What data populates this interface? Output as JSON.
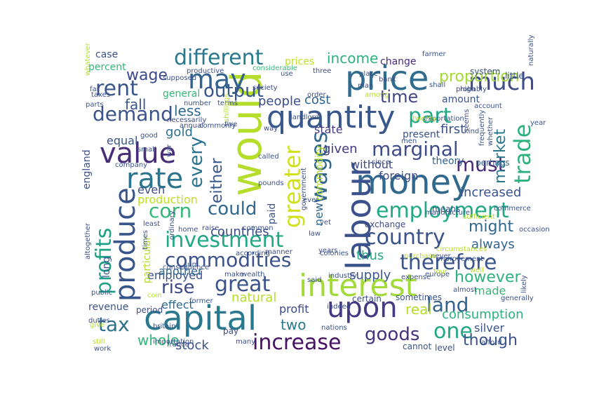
{
  "words": [
    {
      "text": "would",
      "color": "#b5dd2b"
    },
    {
      "text": "price",
      "color": "#2f6c8e"
    },
    {
      "text": "capital",
      "color": "#2a788e"
    },
    {
      "text": "money",
      "color": "#31688e"
    },
    {
      "text": "labour",
      "color": "#3b518b"
    },
    {
      "text": "quantity",
      "color": "#38578c"
    },
    {
      "text": "value",
      "color": "#472c7a"
    },
    {
      "text": "interest",
      "color": "#a2da37"
    },
    {
      "text": "rate",
      "color": "#2b748e"
    },
    {
      "text": "may",
      "color": "#33638d"
    },
    {
      "text": "produce",
      "color": "#39568c"
    },
    {
      "text": "upon",
      "color": "#443a83"
    },
    {
      "text": "employment",
      "color": "#22a884"
    },
    {
      "text": "greater",
      "color": "#d0e11c"
    },
    {
      "text": "country",
      "color": "#3b528b"
    },
    {
      "text": "therefore",
      "color": "#3a548c"
    },
    {
      "text": "much",
      "color": "#3e4c8a"
    },
    {
      "text": "trade",
      "color": "#2db27d"
    },
    {
      "text": "wages",
      "color": "#31688e"
    },
    {
      "text": "different",
      "color": "#2a788e"
    },
    {
      "text": "rent",
      "color": "#39568c"
    },
    {
      "text": "investment",
      "color": "#22a884"
    },
    {
      "text": "part",
      "color": "#22a884"
    },
    {
      "text": "increase",
      "color": "#471164"
    },
    {
      "text": "commodities",
      "color": "#3b528b"
    },
    {
      "text": "marginal",
      "color": "#3e4c8a"
    },
    {
      "text": "one",
      "color": "#22a884"
    },
    {
      "text": "demand",
      "color": "#3b528b"
    },
    {
      "text": "must",
      "color": "#472a7a"
    },
    {
      "text": "profits",
      "color": "#1fa187"
    },
    {
      "text": "great",
      "color": "#3b528b"
    },
    {
      "text": "goods",
      "color": "#46337e"
    },
    {
      "text": "corn",
      "color": "#35b779"
    },
    {
      "text": "tax",
      "color": "#2c728e"
    },
    {
      "text": "rise",
      "color": "#3e4989"
    },
    {
      "text": "land",
      "color": "#33638d"
    },
    {
      "text": "every",
      "color": "#2c728e"
    },
    {
      "text": "time",
      "color": "#414487"
    },
    {
      "text": "output",
      "color": "#39568c"
    },
    {
      "text": "could",
      "color": "#31688e"
    },
    {
      "text": "proportion",
      "color": "#a5db36"
    },
    {
      "text": "income",
      "color": "#2db27d"
    },
    {
      "text": "market",
      "color": "#2a788e"
    },
    {
      "text": "wage",
      "color": "#3e4989"
    },
    {
      "text": "fall",
      "color": "#38588c"
    },
    {
      "text": "though",
      "color": "#3b528b"
    },
    {
      "text": "however",
      "color": "#2db27d"
    },
    {
      "text": "whole",
      "color": "#35b779"
    },
    {
      "text": "stock",
      "color": "#3b528b"
    },
    {
      "text": "less",
      "color": "#31688e"
    },
    {
      "text": "people",
      "color": "#3e4c8a"
    },
    {
      "text": "thus",
      "color": "#22a884"
    },
    {
      "text": "given",
      "color": "#443a83"
    },
    {
      "text": "supply",
      "color": "#3a548c"
    },
    {
      "text": "might",
      "color": "#31688e"
    },
    {
      "text": "two",
      "color": "#2a788e"
    },
    {
      "text": "real",
      "color": "#b5dd2b"
    },
    {
      "text": "consumption",
      "color": "#2db27d"
    },
    {
      "text": "silver",
      "color": "#3b528b"
    },
    {
      "text": "state",
      "color": "#443a83"
    },
    {
      "text": "either",
      "color": "#38588c"
    },
    {
      "text": "gold",
      "color": "#2c728e"
    },
    {
      "text": "equal",
      "color": "#3a548c"
    },
    {
      "text": "cost",
      "color": "#33638d"
    },
    {
      "text": "countries",
      "color": "#3e4c8a"
    },
    {
      "text": "always",
      "color": "#33638d"
    },
    {
      "text": "increased",
      "color": "#3b528b"
    },
    {
      "text": "even",
      "color": "#3e4c8a"
    },
    {
      "text": "foreign",
      "color": "#3e4c8a"
    },
    {
      "text": "first",
      "color": "#3b528b"
    },
    {
      "text": "employed",
      "color": "#3b528b"
    },
    {
      "text": "made",
      "color": "#35b779"
    },
    {
      "text": "profit",
      "color": "#3e4989"
    },
    {
      "text": "effect",
      "color": "#31688e"
    },
    {
      "text": "natural",
      "color": "#b5dd2b"
    },
    {
      "text": "another",
      "color": "#31688e"
    },
    {
      "text": "revenue",
      "color": "#3b528b"
    },
    {
      "text": "without",
      "color": "#3e4c8a"
    },
    {
      "text": "theory",
      "color": "#33638d"
    },
    {
      "text": "present",
      "color": "#3b528b"
    },
    {
      "text": "general",
      "color": "#35b779"
    },
    {
      "text": "amount",
      "color": "#3b528b"
    },
    {
      "text": "prices",
      "color": "#c2df23"
    },
    {
      "text": "change",
      "color": "#472a7a"
    },
    {
      "text": "production",
      "color": "#bddf26"
    },
    {
      "text": "particular",
      "color": "#b5dd2b"
    },
    {
      "text": "long",
      "color": "#3b528b"
    },
    {
      "text": "england",
      "color": "#3b528b"
    },
    {
      "text": "case",
      "color": "#3b528b"
    },
    {
      "text": "percent",
      "color": "#35b779"
    },
    {
      "text": "commodity",
      "color": "#b5dd2b"
    },
    {
      "text": "perhaps",
      "color": "#31688e"
    },
    {
      "text": "exchange",
      "color": "#3e4c8a"
    },
    {
      "text": "level",
      "color": "#3b528b"
    },
    {
      "text": "cannot",
      "color": "#3b528b"
    },
    {
      "text": "sometimes",
      "color": "#3b528b"
    },
    {
      "text": "certain",
      "color": "#3e4c8a"
    },
    {
      "text": "pay",
      "color": "#3e4c8a"
    },
    {
      "text": "period",
      "color": "#3e4c8a"
    },
    {
      "text": "paid",
      "color": "#3b528b"
    },
    {
      "text": "new",
      "color": "#31688e"
    },
    {
      "text": "means",
      "color": "#3b528b"
    },
    {
      "text": "system",
      "color": "#3b528b"
    },
    {
      "text": "high",
      "color": "#3b528b"
    },
    {
      "text": "three",
      "color": "#3e4c8a"
    },
    {
      "text": "society",
      "color": "#3e4c8a"
    },
    {
      "text": "terms",
      "color": "#3b528b"
    },
    {
      "text": "number",
      "color": "#3b528b"
    },
    {
      "text": "taxes",
      "color": "#3e4c8a"
    },
    {
      "text": "far",
      "color": "#3b528b"
    },
    {
      "text": "bank",
      "color": "#3e4c8a"
    },
    {
      "text": "place",
      "color": "#3b528b"
    },
    {
      "text": "man",
      "color": "#3e4c8a"
    },
    {
      "text": "little",
      "color": "#3b528b"
    },
    {
      "text": "farmer",
      "color": "#3b528b"
    },
    {
      "text": "shall",
      "color": "#3b528b"
    },
    {
      "text": "home",
      "color": "#3b528b"
    },
    {
      "text": "raise",
      "color": "#3e4c8a"
    },
    {
      "text": "manner",
      "color": "#3e4c8a"
    },
    {
      "text": "make",
      "color": "#3b528b"
    },
    {
      "text": "wealth",
      "color": "#3b528b"
    },
    {
      "text": "industry",
      "color": "#3b528b"
    },
    {
      "text": "said",
      "color": "#3b528b"
    },
    {
      "text": "indeed",
      "color": "#3e4c8a"
    },
    {
      "text": "work",
      "color": "#3b528b"
    },
    {
      "text": "many",
      "color": "#3e4c8a"
    },
    {
      "text": "sum",
      "color": "#3b528b"
    },
    {
      "text": "public",
      "color": "#3b528b"
    },
    {
      "text": "still",
      "color": "#b5dd2b"
    },
    {
      "text": "duties",
      "color": "#3e4c8a"
    },
    {
      "text": "britain",
      "color": "#3b528b"
    },
    {
      "text": "years",
      "color": "#3b528b"
    },
    {
      "text": "yet",
      "color": "#3b528b"
    },
    {
      "text": "according",
      "color": "#3b528b"
    },
    {
      "text": "common",
      "color": "#3b528b"
    },
    {
      "text": "pounds",
      "color": "#3b528b"
    },
    {
      "text": "called",
      "color": "#3b528b"
    },
    {
      "text": "annual",
      "color": "#3e4c8a"
    },
    {
      "text": "small",
      "color": "#3b528b"
    },
    {
      "text": "good",
      "color": "#3b528b"
    },
    {
      "text": "five",
      "color": "#3b528b"
    },
    {
      "text": "necessarily",
      "color": "#3e4c8a"
    },
    {
      "text": "government",
      "color": "#3b528b"
    },
    {
      "text": "since",
      "color": "#3e4c8a"
    },
    {
      "text": "landlord",
      "color": "#3b528b"
    },
    {
      "text": "way",
      "color": "#3e4c8a"
    },
    {
      "text": "use",
      "color": "#3b528b"
    },
    {
      "text": "order",
      "color": "#3b528b"
    },
    {
      "text": "exportation",
      "color": "#3b528b"
    },
    {
      "text": "account",
      "color": "#3b528b"
    },
    {
      "text": "whether",
      "color": "#3b528b"
    },
    {
      "text": "frequently",
      "color": "#3b528b"
    },
    {
      "text": "manufacture",
      "color": "#3b528b"
    },
    {
      "text": "sufficient",
      "color": "#b5dd2b"
    },
    {
      "text": "well",
      "color": "#b5dd2b"
    },
    {
      "text": "almost",
      "color": "#3b528b"
    },
    {
      "text": "generally",
      "color": "#3b528b"
    },
    {
      "text": "expense",
      "color": "#3b528b"
    },
    {
      "text": "europe",
      "color": "#3b528b"
    },
    {
      "text": "never",
      "color": "#3b528b"
    },
    {
      "text": "purchase",
      "color": "#b5dd2b"
    },
    {
      "text": "colonies",
      "color": "#3b528b"
    },
    {
      "text": "times",
      "color": "#3b528b"
    },
    {
      "text": "ordinary",
      "color": "#3b528b"
    },
    {
      "text": "among",
      "color": "#b5dd2b"
    },
    {
      "text": "probably",
      "color": "#3e4c8a"
    },
    {
      "text": "seems",
      "color": "#3e4c8a"
    },
    {
      "text": "year",
      "color": "#3b528b"
    },
    {
      "text": "kind",
      "color": "#3b528b"
    },
    {
      "text": "afford",
      "color": "#3b528b"
    },
    {
      "text": "importation",
      "color": "#3b528b"
    },
    {
      "text": "france",
      "color": "#3b528b"
    },
    {
      "text": "nations",
      "color": "#3b528b"
    },
    {
      "text": "consequence",
      "color": "#3b528b"
    },
    {
      "text": "former",
      "color": "#3b528b"
    },
    {
      "text": "productive",
      "color": "#3b528b"
    },
    {
      "text": "considerable",
      "color": "#35b779"
    },
    {
      "text": "commonly",
      "color": "#3b528b"
    },
    {
      "text": "shillings",
      "color": "#b5dd2b"
    },
    {
      "text": "circumstances",
      "color": "#b5dd2b"
    },
    {
      "text": "improvement",
      "color": "#3b528b"
    },
    {
      "text": "commerce",
      "color": "#3b528b"
    },
    {
      "text": "occasion",
      "color": "#3b528b"
    },
    {
      "text": "likely",
      "color": "#3b528b"
    },
    {
      "text": "whatever",
      "color": "#b5dd2b"
    },
    {
      "text": "naturally",
      "color": "#3b528b"
    },
    {
      "text": "supposed",
      "color": "#3b528b"
    },
    {
      "text": "parts",
      "color": "#3b528b"
    },
    {
      "text": "war",
      "color": "#3b528b"
    },
    {
      "text": "least",
      "color": "#3b528b"
    },
    {
      "text": "altogether",
      "color": "#3b528b"
    },
    {
      "text": "company",
      "color": "#3b528b"
    },
    {
      "text": "give",
      "color": "#b5dd2b"
    },
    {
      "text": "coin",
      "color": "#b5dd2b"
    },
    {
      "text": "law",
      "color": "#3b528b"
    },
    {
      "text": "men",
      "color": "#3b528b"
    },
    {
      "text": "four",
      "color": "#b5dd2b"
    },
    {
      "text": "twenty",
      "color": "#b5dd2b"
    },
    {
      "text": "ever",
      "color": "#3b528b"
    }
  ]
}
